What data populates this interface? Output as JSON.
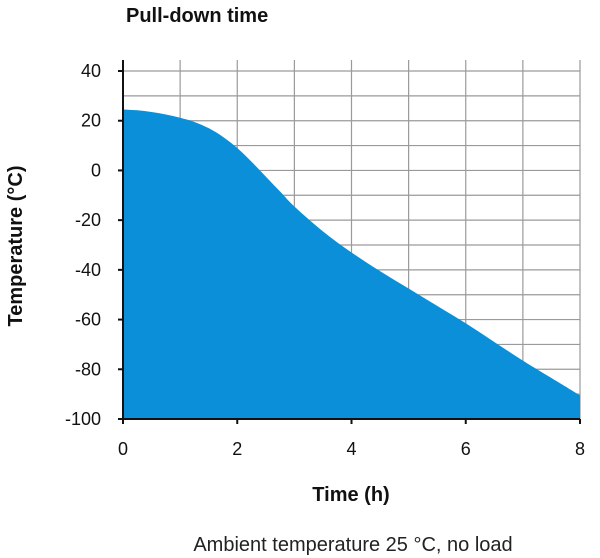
{
  "chart_data": {
    "type": "area",
    "title": "Pull-down time",
    "xlabel": "Time (h)",
    "ylabel": "Temperature (°C)",
    "caption": "Ambient temperature 25 °C, no load",
    "xlim": [
      0,
      8
    ],
    "ylim": [
      -100,
      40
    ],
    "x_ticks": [
      0,
      2,
      4,
      6,
      8
    ],
    "y_ticks": [
      40,
      20,
      0,
      -20,
      -40,
      -60,
      -80,
      -100
    ],
    "grid": true,
    "fill_color": "#0a8fd8",
    "series": [
      {
        "x": [
          0,
          0.25,
          0.5,
          0.75,
          1.0,
          1.25,
          1.5,
          1.75,
          2.0,
          2.25,
          2.5,
          2.75,
          3.0,
          3.5,
          4.0,
          4.5,
          5.0,
          5.5,
          6.0,
          6.5,
          7.0,
          7.5,
          8.0
        ],
        "values": [
          24.5,
          24.2,
          23.5,
          22.5,
          21.2,
          19.5,
          17,
          13.5,
          9,
          3.5,
          -2.5,
          -8.5,
          -14.5,
          -24.5,
          -33,
          -40.5,
          -47.5,
          -54.5,
          -61.5,
          -69,
          -76.5,
          -83.5,
          -90.5
        ]
      }
    ]
  }
}
